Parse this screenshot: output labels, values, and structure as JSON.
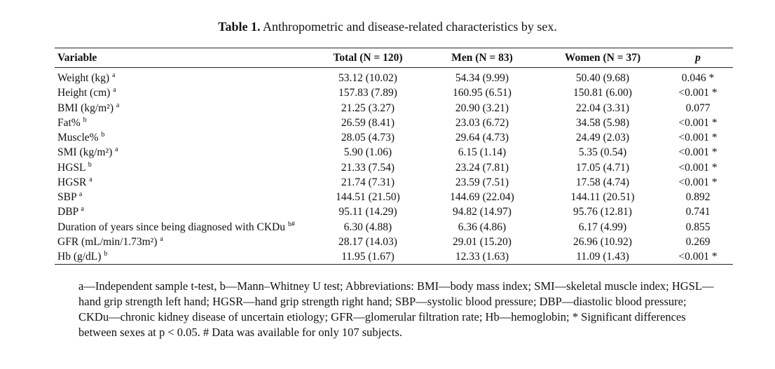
{
  "caption": {
    "label": "Table 1.",
    "text": "Anthropometric and disease-related characteristics by sex."
  },
  "headers": {
    "variable": "Variable",
    "total": "Total (N = 120)",
    "men": "Men (N = 83)",
    "women": "Women (N = 37)",
    "p": "p"
  },
  "rows": [
    {
      "name": "Weight (kg)",
      "sup": "a",
      "total": "53.12 (10.02)",
      "men": "54.34 (9.99)",
      "women": "50.40 (9.68)",
      "p": "0.046 *"
    },
    {
      "name": "Height (cm)",
      "sup": "a",
      "total": "157.83 (7.89)",
      "men": "160.95 (6.51)",
      "women": "150.81 (6.00)",
      "p": "<0.001 *"
    },
    {
      "name": "BMI (kg/m²)",
      "sup": "a",
      "total": "21.25 (3.27)",
      "men": "20.90 (3.21)",
      "women": "22.04 (3.31)",
      "p": "0.077"
    },
    {
      "name": "Fat%",
      "sup": "b",
      "total": "26.59 (8.41)",
      "men": "23.03 (6.72)",
      "women": "34.58 (5.98)",
      "p": "<0.001 *"
    },
    {
      "name": "Muscle%",
      "sup": "b",
      "total": "28.05 (4.73)",
      "men": "29.64 (4.73)",
      "women": "24.49 (2.03)",
      "p": "<0.001 *"
    },
    {
      "name": "SMI (kg/m²)",
      "sup": "a",
      "total": "5.90 (1.06)",
      "men": "6.15 (1.14)",
      "women": "5.35 (0.54)",
      "p": "<0.001 *"
    },
    {
      "name": "HGSL",
      "sup": "b",
      "total": "21.33 (7.54)",
      "men": "23.24 (7.81)",
      "women": "17.05 (4.71)",
      "p": "<0.001 *"
    },
    {
      "name": "HGSR",
      "sup": "a",
      "total": "21.74 (7.31)",
      "men": "23.59 (7.51)",
      "women": "17.58 (4.74)",
      "p": "<0.001 *"
    },
    {
      "name": "SBP",
      "sup": "a",
      "total": "144.51 (21.50)",
      "men": "144.69 (22.04)",
      "women": "144.11 (20.51)",
      "p": "0.892"
    },
    {
      "name": "DBP",
      "sup": "a",
      "total": "95.11 (14.29)",
      "men": "94.82 (14.97)",
      "women": "95.76 (12.81)",
      "p": "0.741"
    },
    {
      "name": "Duration of years since being diagnosed with CKDu",
      "sup": "b#",
      "total": "6.30 (4.88)",
      "men": "6.36 (4.86)",
      "women": "6.17 (4.99)",
      "p": "0.855"
    },
    {
      "name": "GFR (mL/min/1.73m²)",
      "sup": "a",
      "total": "28.17 (14.03)",
      "men": "29.01 (15.20)",
      "women": "26.96 (10.92)",
      "p": "0.269"
    },
    {
      "name": "Hb (g/dL)",
      "sup": "b",
      "total": "11.95 (1.67)",
      "men": "12.33 (1.63)",
      "women": "11.09 (1.43)",
      "p": "<0.001 *"
    }
  ],
  "footnote": "a—Independent sample t-test, b—Mann–Whitney U test; Abbreviations: BMI—body mass index; SMI—skeletal muscle index; HGSL—hand grip strength left hand; HGSR—hand grip strength right hand; SBP—systolic blood pressure; DBP—diastolic blood pressure; CKDu—chronic kidney disease of uncertain etiology; GFR—glomerular filtration rate; Hb—hemoglobin; * Significant differences between sexes at p < 0.05. # Data was available for only 107 subjects."
}
